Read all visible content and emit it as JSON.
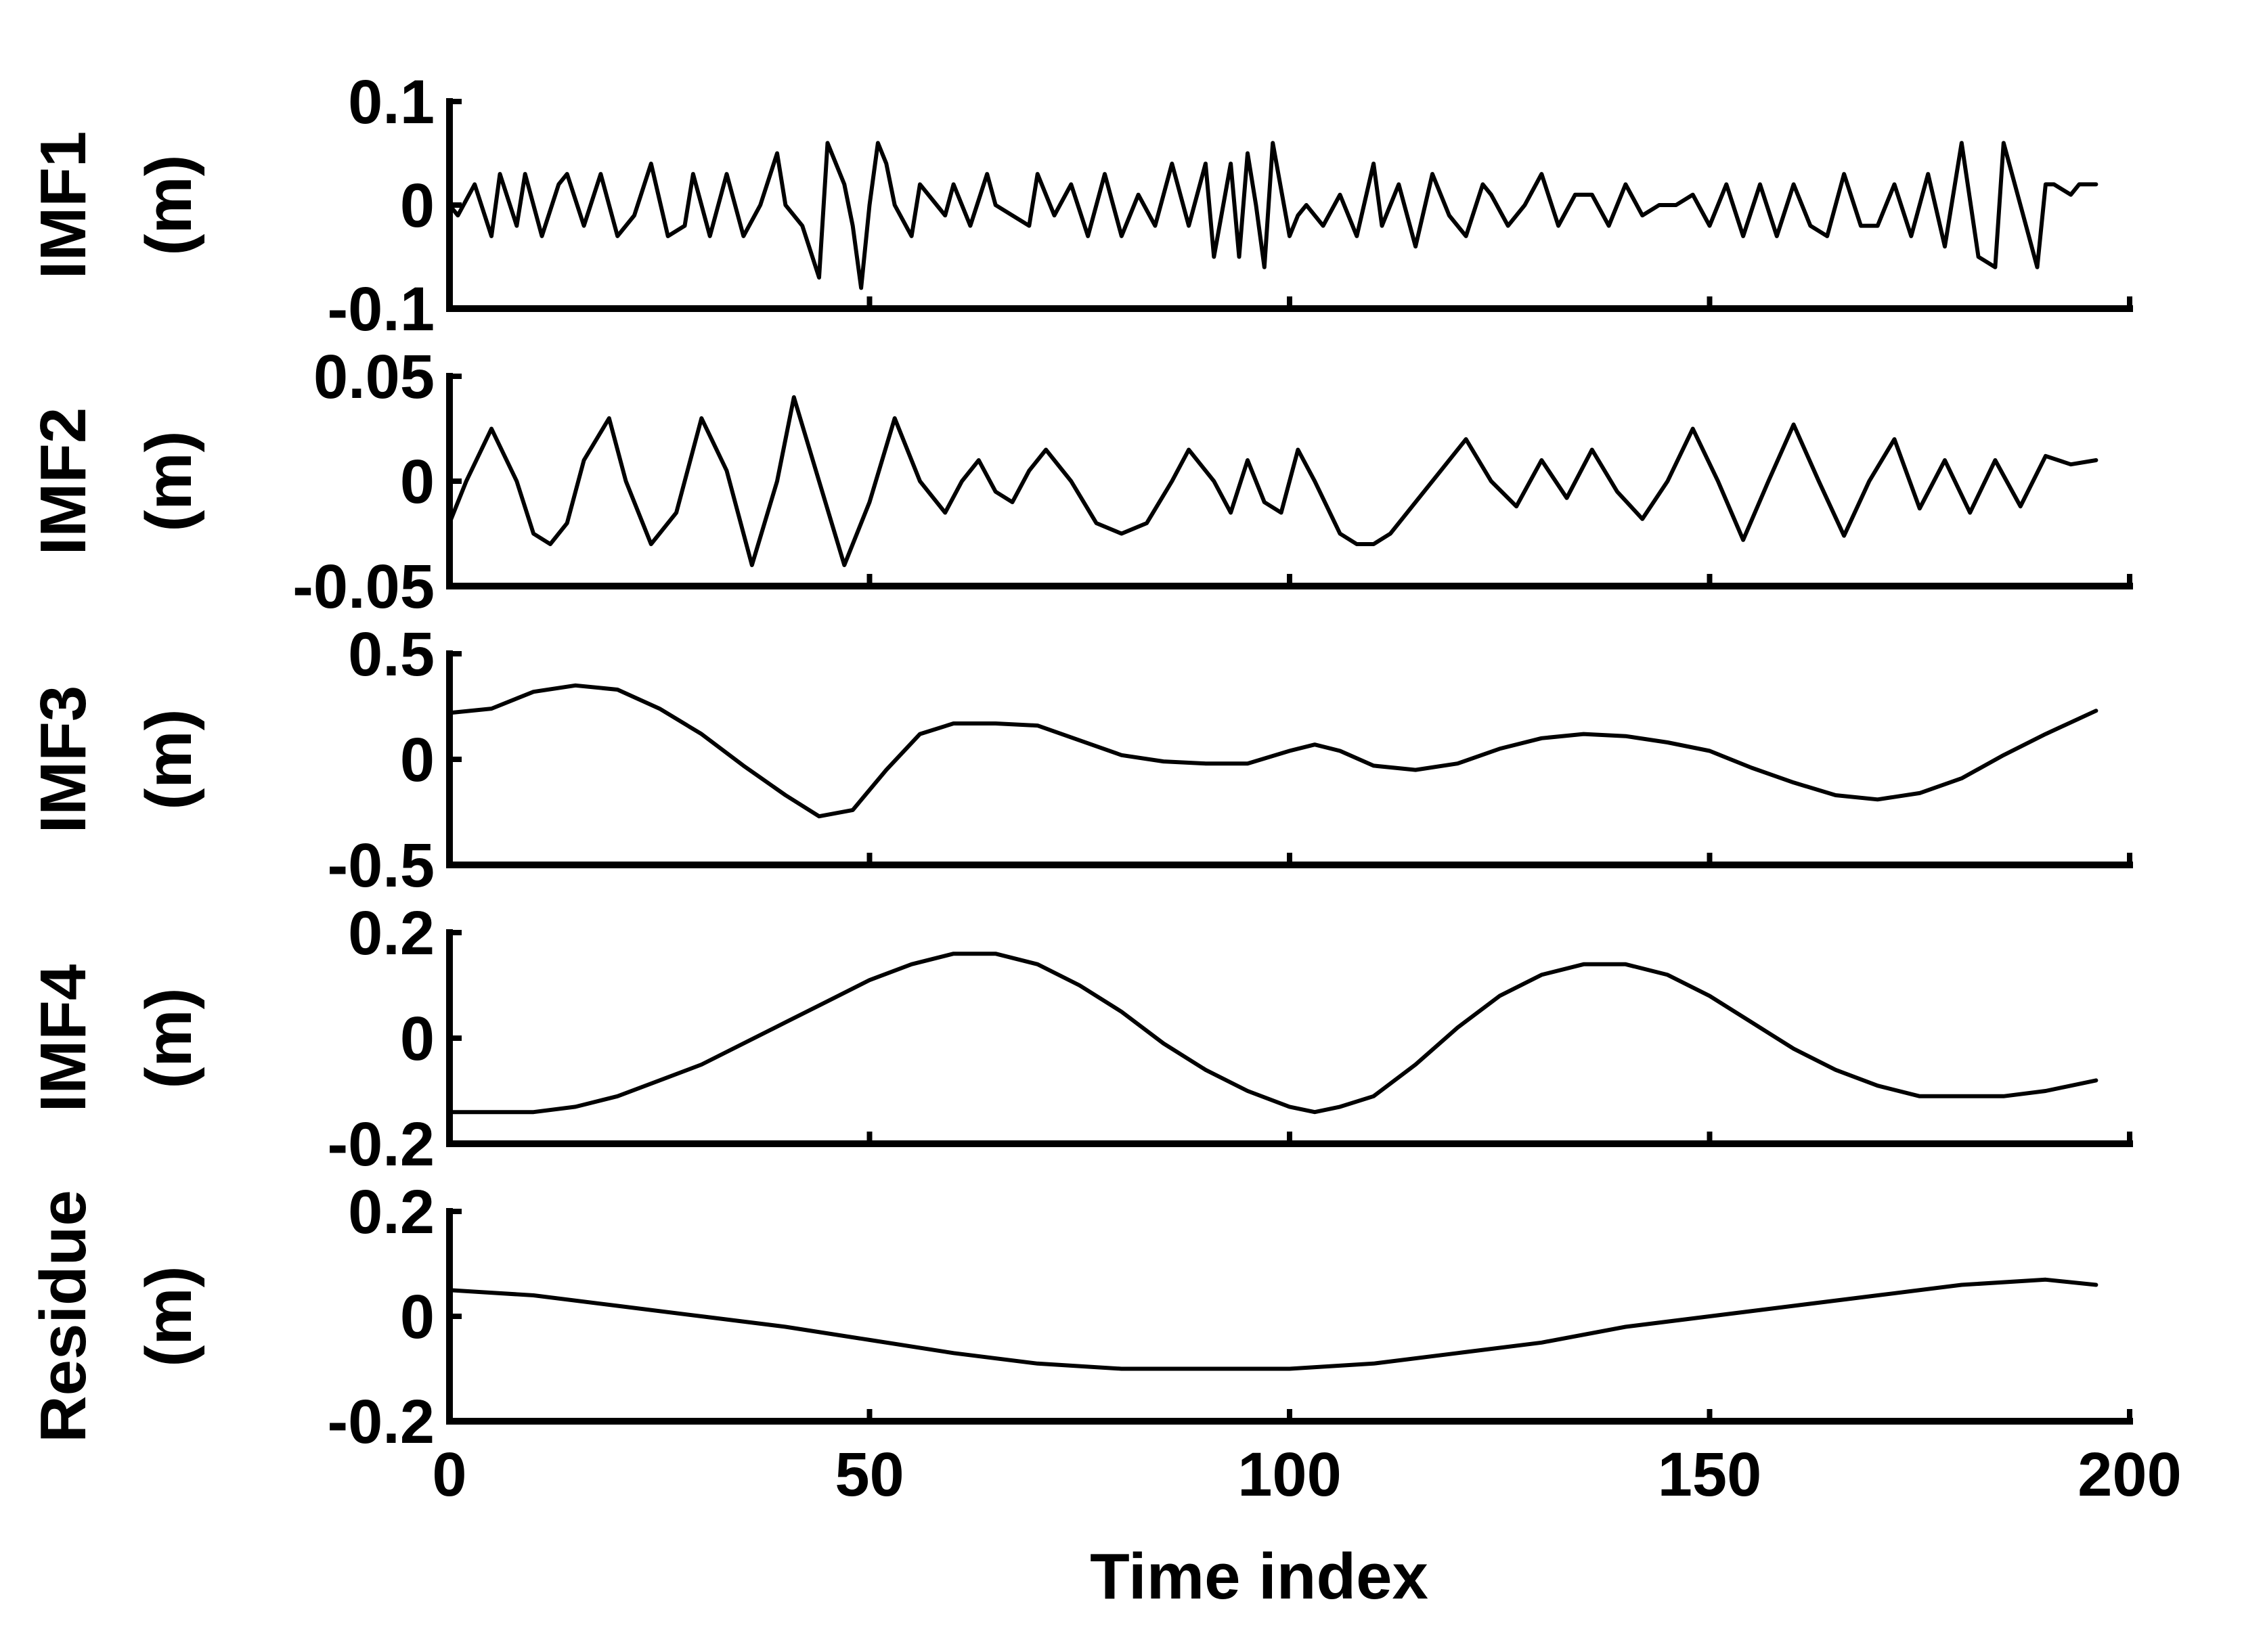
{
  "chart_data": {
    "type": "line",
    "xlabel": "Time index",
    "xlim": [
      0,
      200
    ],
    "x_ticks": [
      "0",
      "50",
      "100",
      "150",
      "200"
    ],
    "x_tick_values": [
      0,
      50,
      100,
      150,
      200
    ],
    "grid": false,
    "legend": "none",
    "panels": [
      {
        "ylabel_line1": "IMF1",
        "ylabel_line2": "(m)",
        "ylim": [
          -0.1,
          0.1
        ],
        "y_ticks": [
          "0.1",
          "0",
          "-0.1"
        ],
        "y_tick_values": [
          0.1,
          0,
          -0.1
        ],
        "x": [
          0,
          1,
          3,
          5,
          6,
          8,
          9,
          11,
          13,
          14,
          16,
          18,
          20,
          22,
          24,
          26,
          28,
          29,
          31,
          33,
          35,
          37,
          39,
          40,
          42,
          44,
          45,
          47,
          48,
          49,
          50,
          51,
          52,
          53,
          55,
          56,
          57,
          59,
          60,
          62,
          64,
          65,
          67,
          69,
          70,
          72,
          74,
          76,
          78,
          80,
          82,
          84,
          86,
          88,
          90,
          91,
          93,
          94,
          95,
          96,
          97,
          98,
          100,
          101,
          102,
          104,
          106,
          108,
          110,
          111,
          113,
          115,
          117,
          119,
          121,
          123,
          124,
          126,
          128,
          130,
          132,
          134,
          136,
          138,
          140,
          142,
          144,
          146,
          148,
          150,
          152,
          154,
          156,
          158,
          160,
          162,
          164,
          166,
          168,
          170,
          172,
          174,
          176,
          178,
          180,
          182,
          184,
          185,
          187,
          189,
          190,
          191,
          193,
          194,
          196
        ],
        "values": [
          0.0,
          -0.01,
          0.02,
          -0.03,
          0.03,
          -0.02,
          0.03,
          -0.03,
          0.02,
          0.03,
          -0.02,
          0.03,
          -0.03,
          -0.01,
          0.04,
          -0.03,
          -0.02,
          0.03,
          -0.03,
          0.03,
          -0.03,
          0.0,
          0.05,
          0.0,
          -0.02,
          -0.07,
          0.06,
          0.02,
          -0.02,
          -0.08,
          0.0,
          0.06,
          0.04,
          0.0,
          -0.03,
          0.02,
          0.01,
          -0.01,
          0.02,
          -0.02,
          0.03,
          0.0,
          -0.01,
          -0.02,
          0.03,
          -0.01,
          0.02,
          -0.03,
          0.03,
          -0.03,
          0.01,
          -0.02,
          0.04,
          -0.02,
          0.04,
          -0.05,
          0.04,
          -0.05,
          0.05,
          0.0,
          -0.06,
          0.06,
          -0.03,
          -0.01,
          0.0,
          -0.02,
          0.01,
          -0.03,
          0.04,
          -0.02,
          0.02,
          -0.04,
          0.03,
          -0.01,
          -0.03,
          0.02,
          0.01,
          -0.02,
          0.0,
          0.03,
          -0.02,
          0.01,
          0.01,
          -0.02,
          0.02,
          -0.01,
          0.0,
          0.0,
          0.01,
          -0.02,
          0.02,
          -0.03,
          0.02,
          -0.03,
          0.02,
          -0.02,
          -0.03,
          0.03,
          -0.02,
          -0.02,
          0.02,
          -0.03,
          0.03,
          -0.04,
          0.06,
          -0.05,
          -0.06,
          0.06,
          0.0,
          -0.06,
          0.02,
          0.02,
          0.01,
          0.02,
          0.02
        ]
      },
      {
        "ylabel_line1": "IMF2",
        "ylabel_line2": "(m)",
        "ylim": [
          -0.05,
          0.05
        ],
        "y_ticks": [
          "0.05",
          "0",
          "-0.05"
        ],
        "y_tick_values": [
          0.05,
          0,
          -0.05
        ],
        "x": [
          0,
          2,
          5,
          8,
          10,
          12,
          14,
          16,
          19,
          21,
          24,
          27,
          30,
          33,
          36,
          39,
          41,
          44,
          47,
          50,
          53,
          56,
          59,
          61,
          63,
          65,
          67,
          69,
          71,
          74,
          77,
          80,
          83,
          86,
          88,
          91,
          93,
          95,
          97,
          99,
          101,
          103,
          106,
          108,
          110,
          112,
          115,
          118,
          121,
          124,
          127,
          130,
          133,
          136,
          139,
          142,
          145,
          148,
          151,
          154,
          157,
          160,
          163,
          166,
          169,
          172,
          175,
          178,
          181,
          184,
          187,
          190,
          193,
          196
        ],
        "values": [
          -0.02,
          0.0,
          0.025,
          0.0,
          -0.025,
          -0.03,
          -0.02,
          0.01,
          0.03,
          0.0,
          -0.03,
          -0.015,
          0.03,
          0.005,
          -0.04,
          0.0,
          0.04,
          0.0,
          -0.04,
          -0.01,
          0.03,
          0.0,
          -0.015,
          0.0,
          0.01,
          -0.005,
          -0.01,
          0.005,
          0.015,
          0.0,
          -0.02,
          -0.025,
          -0.02,
          0.0,
          0.015,
          0.0,
          -0.015,
          0.01,
          -0.01,
          -0.015,
          0.015,
          0.0,
          -0.025,
          -0.03,
          -0.03,
          -0.025,
          -0.01,
          0.005,
          0.02,
          0.0,
          -0.012,
          0.01,
          -0.008,
          0.015,
          -0.005,
          -0.018,
          0.0,
          0.025,
          0.0,
          -0.028,
          0.0,
          0.027,
          0.0,
          -0.026,
          0.0,
          0.02,
          -0.013,
          0.01,
          -0.015,
          0.01,
          -0.012,
          0.012,
          0.008,
          0.01
        ]
      },
      {
        "ylabel_line1": "IMF3",
        "ylabel_line2": "(m)",
        "ylim": [
          -0.5,
          0.5
        ],
        "y_ticks": [
          "0.5",
          "0",
          "-0.5"
        ],
        "y_tick_values": [
          0.5,
          0,
          -0.5
        ],
        "x": [
          0,
          5,
          10,
          15,
          20,
          25,
          30,
          35,
          40,
          44,
          48,
          52,
          56,
          60,
          65,
          70,
          75,
          80,
          85,
          90,
          95,
          100,
          103,
          106,
          110,
          115,
          120,
          125,
          130,
          135,
          140,
          145,
          150,
          155,
          160,
          165,
          170,
          175,
          180,
          185,
          190,
          196
        ],
        "values": [
          0.22,
          0.24,
          0.32,
          0.35,
          0.33,
          0.24,
          0.12,
          -0.03,
          -0.17,
          -0.27,
          -0.24,
          -0.05,
          0.12,
          0.17,
          0.17,
          0.16,
          0.09,
          0.02,
          -0.01,
          -0.02,
          -0.02,
          0.04,
          0.07,
          0.04,
          -0.03,
          -0.05,
          -0.02,
          0.05,
          0.1,
          0.12,
          0.11,
          0.08,
          0.04,
          -0.04,
          -0.11,
          -0.17,
          -0.19,
          -0.16,
          -0.09,
          0.02,
          0.12,
          0.23
        ]
      },
      {
        "ylabel_line1": "IMF4",
        "ylabel_line2": "(m)",
        "ylim": [
          -0.2,
          0.2
        ],
        "y_ticks": [
          "0.2",
          "0",
          "-0.2"
        ],
        "y_tick_values": [
          0.2,
          0,
          -0.2
        ],
        "x": [
          0,
          5,
          10,
          15,
          20,
          25,
          30,
          35,
          40,
          45,
          50,
          55,
          60,
          65,
          70,
          75,
          80,
          85,
          90,
          95,
          100,
          103,
          106,
          110,
          115,
          120,
          125,
          130,
          135,
          140,
          145,
          150,
          155,
          160,
          165,
          170,
          175,
          180,
          185,
          190,
          196
        ],
        "values": [
          -0.14,
          -0.14,
          -0.14,
          -0.13,
          -0.11,
          -0.08,
          -0.05,
          -0.01,
          0.03,
          0.07,
          0.11,
          0.14,
          0.16,
          0.16,
          0.14,
          0.1,
          0.05,
          -0.01,
          -0.06,
          -0.1,
          -0.13,
          -0.14,
          -0.13,
          -0.11,
          -0.05,
          0.02,
          0.08,
          0.12,
          0.14,
          0.14,
          0.12,
          0.08,
          0.03,
          -0.02,
          -0.06,
          -0.09,
          -0.11,
          -0.11,
          -0.11,
          -0.1,
          -0.08
        ]
      },
      {
        "ylabel_line1": "Residue",
        "ylabel_line2": "(m)",
        "ylim": [
          -0.2,
          0.2
        ],
        "y_ticks": [
          "0.2",
          "0",
          "-0.2"
        ],
        "y_tick_values": [
          0.2,
          0,
          -0.2
        ],
        "x": [
          0,
          10,
          20,
          30,
          40,
          50,
          60,
          70,
          80,
          90,
          100,
          110,
          120,
          130,
          140,
          150,
          160,
          170,
          180,
          190,
          196
        ],
        "values": [
          0.05,
          0.04,
          0.02,
          0.0,
          -0.02,
          -0.045,
          -0.07,
          -0.09,
          -0.1,
          -0.1,
          -0.1,
          -0.09,
          -0.07,
          -0.05,
          -0.02,
          0.0,
          0.02,
          0.04,
          0.06,
          0.07,
          0.06
        ]
      }
    ]
  }
}
